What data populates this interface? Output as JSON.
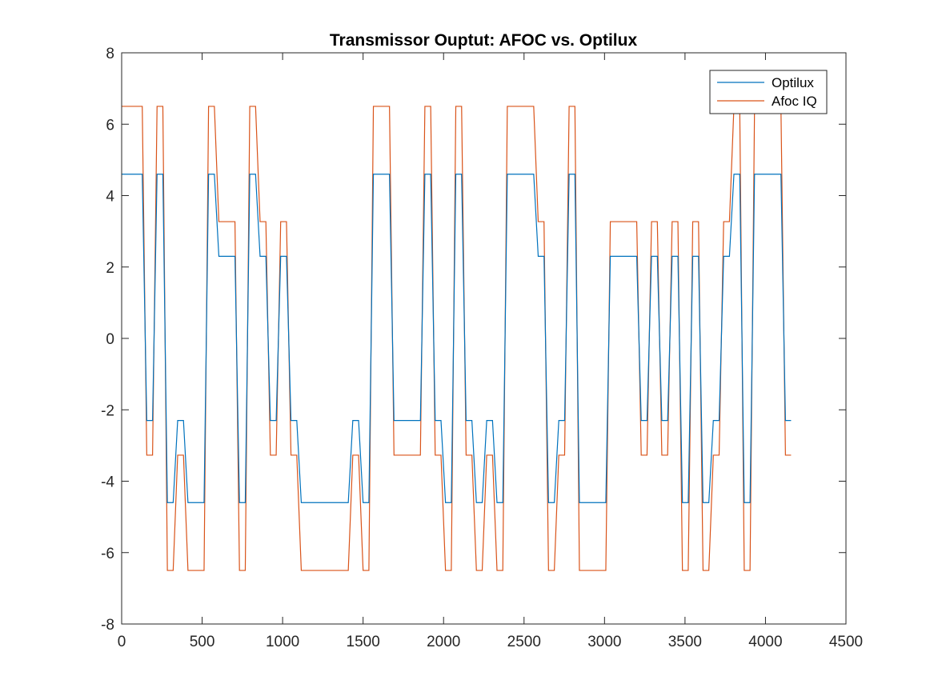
{
  "chart_data": {
    "type": "line",
    "title": "Transmissor Ouptut: AFOC vs. Optilux",
    "xlim": [
      0,
      4500
    ],
    "ylim": [
      -8,
      8
    ],
    "xticks": [
      0,
      500,
      1000,
      1500,
      2000,
      2500,
      3000,
      3500,
      4000,
      4500
    ],
    "yticks": [
      -8,
      -6,
      -4,
      -2,
      0,
      2,
      4,
      6,
      8
    ],
    "grid": false,
    "legend_position": "top-right",
    "colors": {
      "optilux": "#0072BD",
      "afoc": "#D95319",
      "axis": "#262626"
    },
    "symbol_period": 64,
    "symbols": [
      3,
      3,
      -1,
      3,
      -3,
      -1,
      -3,
      -3,
      3,
      1,
      1,
      -3,
      3,
      1,
      -1,
      1,
      -1,
      -3,
      -3,
      -3,
      -3,
      -3,
      -1,
      -3,
      3,
      3,
      -1,
      -1,
      -1,
      3,
      -1,
      -3,
      3,
      -1,
      -3,
      -1,
      -3,
      3,
      3,
      3,
      1,
      -3,
      -1,
      3,
      -3,
      -3,
      -3,
      1,
      1,
      1,
      -1,
      1,
      -1,
      1,
      -3,
      1,
      -3,
      -1,
      1,
      3,
      -3,
      3,
      3,
      3,
      -1
    ],
    "series": [
      {
        "name": "Optilux",
        "levels": [
          4.6,
          2.3,
          -2.3,
          -4.6
        ]
      },
      {
        "name": "Afoc IQ",
        "levels": [
          6.5,
          3.27,
          -3.27,
          -6.5
        ]
      }
    ]
  }
}
